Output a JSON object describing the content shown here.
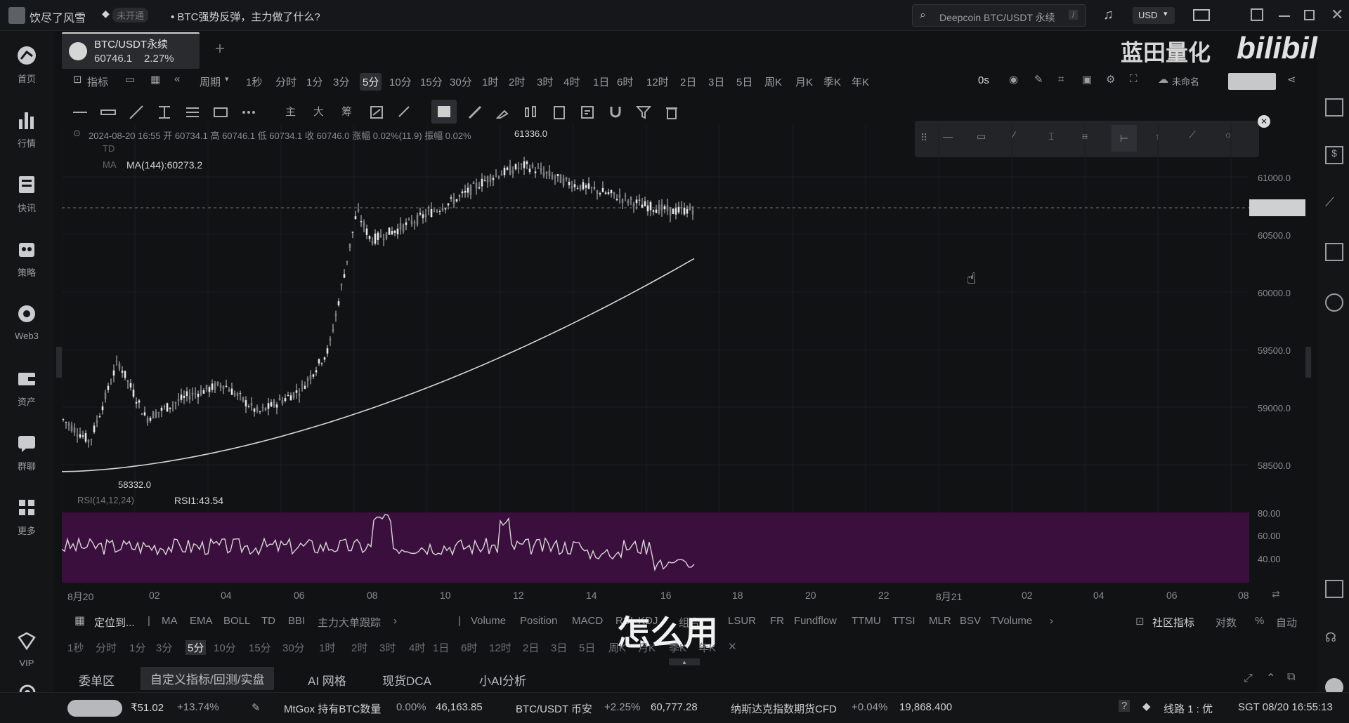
{
  "topbar": {
    "user_name": "饮尽了风雪",
    "badge": "未开通",
    "news": "• BTC强势反弹，主力做了什么?",
    "search_placeholder": "Deepcoin BTC/USDT 永续",
    "search_shortcut": "/",
    "currency": "USD",
    "watermark_text": "蓝田量化",
    "watermark_logo": "bilibili"
  },
  "sidebar": {
    "items": [
      {
        "label": "首页",
        "icon": "home-icon"
      },
      {
        "label": "行情",
        "icon": "market-icon"
      },
      {
        "label": "快讯",
        "icon": "news-icon"
      },
      {
        "label": "策略",
        "icon": "strategy-icon"
      },
      {
        "label": "Web3",
        "icon": "web3-icon"
      },
      {
        "label": "资产",
        "icon": "wallet-icon"
      },
      {
        "label": "群聊",
        "icon": "chat-icon"
      },
      {
        "label": "更多",
        "icon": "more-icon"
      }
    ],
    "vip_label": "VIP"
  },
  "symbol_tab": {
    "name": "BTC/USDT永续",
    "price": "60746.1",
    "change": "2.27%"
  },
  "toolbar": {
    "indicator_label": "指标",
    "period_label": "周期",
    "timeframes": [
      "1秒",
      "分时",
      "1分",
      "3分",
      "5分",
      "10分",
      "15分",
      "30分",
      "1时",
      "2时",
      "3时",
      "4时",
      "1日",
      "6时",
      "12时",
      "2日",
      "3日",
      "5日",
      "周K",
      "月K",
      "季K",
      "年K"
    ],
    "selected_timeframe": "5分",
    "countdown": "0s",
    "layout_name": "未命名"
  },
  "chart_header": {
    "ohlc": "2024-08-20 16:55 开 60734.1 高 60746.1 低 60734.1 收 60746.0 涨幅 0.02%(11.9) 振幅 0.02%",
    "td_label": "TD",
    "ma_label": "MA",
    "ma_value": "MA(144):60273.2",
    "high_marker": "61336.0",
    "low_marker": "58332.0",
    "rsi_label": "RSI(14,12,24)",
    "rsi_value": "RSI1:43.54"
  },
  "chart_data": {
    "type": "candlestick",
    "price_axis": [
      "61000.0",
      "60500.0",
      "60000.0",
      "59500.0",
      "59000.0",
      "58500.0"
    ],
    "rsi_axis": [
      "80.00",
      "60.00",
      "40.00"
    ],
    "x_axis": [
      "8月20",
      "02",
      "04",
      "06",
      "08",
      "10",
      "12",
      "14",
      "16",
      "18",
      "20",
      "22",
      "8月21",
      "02",
      "04",
      "06",
      "08"
    ],
    "ylim": [
      58300,
      61350
    ],
    "rsi_ylim": [
      20,
      90
    ]
  },
  "indicator_bar": {
    "locate_label": "定位到...",
    "main_indicators": [
      "MA",
      "EMA",
      "BOLL",
      "TD",
      "BBI",
      "主力大单跟踪"
    ],
    "sub_indicators": [
      "Volume",
      "Position",
      "MACD",
      "RSI",
      "KDJ",
      "组合",
      "LSUR",
      "FR",
      "Fundflow",
      "TTMU",
      "TTSI",
      "MLR",
      "BSV",
      "TVolume"
    ],
    "community_label": "社区指标",
    "log_label": "对数",
    "percent_label": "%",
    "auto_label": "自动"
  },
  "subtitle": "怎么用",
  "bottom_timeframes": [
    "1秒",
    "分时",
    "1分",
    "3分",
    "5分",
    "10分",
    "15分",
    "30分",
    "1时",
    "2时",
    "3时",
    "4时",
    "1日",
    "6时",
    "12时",
    "2日",
    "3日",
    "5日",
    "周K",
    "月K",
    "季K",
    "年K"
  ],
  "bottom_tabs": [
    "委单区",
    "自定义指标/回测/实盘",
    "AI 网格",
    "现货DCA",
    "小AI分析"
  ],
  "ticker": {
    "badge_price": "₹51.02",
    "badge_change": "+13.74%",
    "item1_name": "MtGox 持有BTC数量",
    "item1_change": "0.00%",
    "item1_value": "46,163.85",
    "item2_name": "BTC/USDT 币安",
    "item2_change": "+2.25%",
    "item2_value": "60,777.28",
    "item3_name": "纳斯达克指数期货CFD",
    "item3_change": "+0.04%",
    "item3_value": "19,868.400",
    "line_label": "线路 1 : 优",
    "clock": "SGT 08/20 16:55:13"
  }
}
